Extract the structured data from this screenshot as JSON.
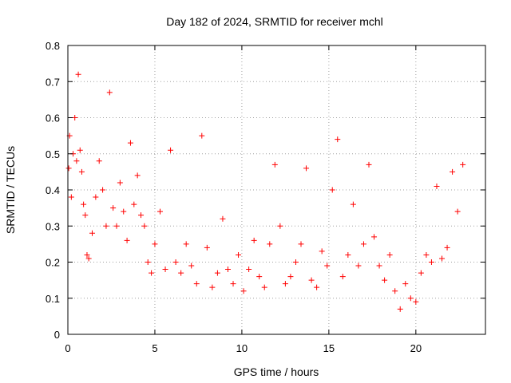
{
  "chart_data": {
    "type": "scatter",
    "title": "Day 182 of 2024, SRMTID for receiver mchl",
    "xlabel": "GPS time / hours",
    "ylabel": "SRMTID / TECUs",
    "xlim": [
      0,
      24
    ],
    "ylim": [
      0,
      0.8
    ],
    "xticks": [
      "0",
      "5",
      "10",
      "15",
      "20"
    ],
    "xtick_values": [
      0,
      5,
      10,
      15,
      20
    ],
    "yticks": [
      "0",
      "0.1",
      "0.2",
      "0.3",
      "0.4",
      "0.5",
      "0.6",
      "0.7",
      "0.8"
    ],
    "ytick_values": [
      0,
      0.1,
      0.2,
      0.3,
      0.4,
      0.5,
      0.6,
      0.7,
      0.8
    ],
    "grid": true,
    "series": [
      {
        "name": "SRMTID",
        "marker": "+",
        "color": "#ff0000",
        "x": [
          0.05,
          0.1,
          0.2,
          0.3,
          0.4,
          0.5,
          0.6,
          0.7,
          0.8,
          0.9,
          1.0,
          1.1,
          1.2,
          1.4,
          1.6,
          1.8,
          2.0,
          2.2,
          2.4,
          2.6,
          2.8,
          3.0,
          3.2,
          3.4,
          3.6,
          3.8,
          4.0,
          4.2,
          4.4,
          4.6,
          4.8,
          5.0,
          5.3,
          5.6,
          5.9,
          6.2,
          6.5,
          6.8,
          7.1,
          7.4,
          7.7,
          8.0,
          8.3,
          8.6,
          8.9,
          9.2,
          9.5,
          9.8,
          10.1,
          10.4,
          10.7,
          11.0,
          11.3,
          11.6,
          11.9,
          12.2,
          12.5,
          12.8,
          13.1,
          13.4,
          13.7,
          14.0,
          14.3,
          14.6,
          14.9,
          15.2,
          15.5,
          15.8,
          16.1,
          16.4,
          16.7,
          17.0,
          17.3,
          17.6,
          17.9,
          18.2,
          18.5,
          18.8,
          19.1,
          19.4,
          19.7,
          20.0,
          20.3,
          20.6,
          20.9,
          21.2,
          21.5,
          21.8,
          22.1,
          22.4,
          22.7
        ],
        "y": [
          0.46,
          0.55,
          0.38,
          0.5,
          0.6,
          0.48,
          0.72,
          0.51,
          0.45,
          0.36,
          0.33,
          0.22,
          0.21,
          0.28,
          0.38,
          0.48,
          0.4,
          0.3,
          0.67,
          0.35,
          0.3,
          0.42,
          0.34,
          0.26,
          0.53,
          0.36,
          0.44,
          0.33,
          0.3,
          0.2,
          0.17,
          0.25,
          0.34,
          0.18,
          0.51,
          0.2,
          0.17,
          0.25,
          0.19,
          0.14,
          0.55,
          0.24,
          0.13,
          0.17,
          0.32,
          0.18,
          0.14,
          0.22,
          0.12,
          0.18,
          0.26,
          0.16,
          0.13,
          0.25,
          0.47,
          0.3,
          0.14,
          0.16,
          0.2,
          0.25,
          0.46,
          0.15,
          0.13,
          0.23,
          0.19,
          0.4,
          0.54,
          0.16,
          0.22,
          0.36,
          0.19,
          0.25,
          0.47,
          0.27,
          0.19,
          0.15,
          0.22,
          0.12,
          0.07,
          0.14,
          0.1,
          0.09,
          0.17,
          0.22,
          0.2,
          0.41,
          0.21,
          0.24,
          0.45,
          0.34,
          0.47
        ]
      }
    ]
  }
}
